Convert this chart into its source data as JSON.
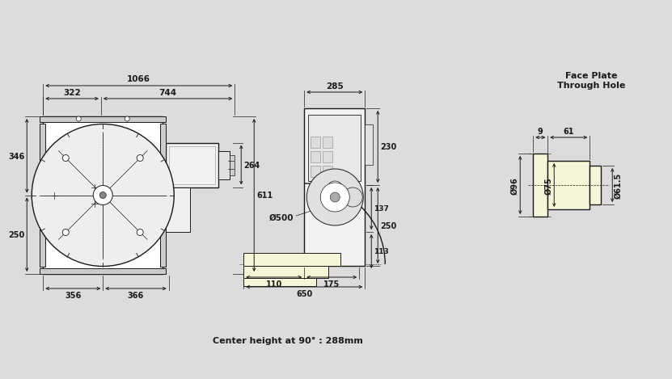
{
  "bg_color": "#dcdcdc",
  "line_color": "#1a1a1a",
  "fill_light": "#f5f5d8",
  "title_fp": "Face Plate\nThrough Hole",
  "center_height_text": "Center height at 90° : 288mm",
  "dims_left": {
    "w_total": "1066",
    "w_left": "322",
    "w_right": "744",
    "h_top": "346",
    "h_bottom": "250",
    "h_right_top": "264",
    "h_right_total": "611",
    "w_bot_left": "356",
    "w_bot_right": "366"
  },
  "dims_mid": {
    "w_top": "285",
    "d_circle": "Ø500",
    "h_right_top": "230",
    "h_right_mid1": "137",
    "h_right_mid2": "113",
    "h_right_bot": "250",
    "w_bot_left": "110",
    "w_bot_right": "175",
    "w_bot_total": "650"
  },
  "dims_right": {
    "w_left": "9",
    "w_mid": "61",
    "d_outer": "Ø96",
    "d_mid": "Ø75",
    "d_hole": "Ø61.5"
  }
}
